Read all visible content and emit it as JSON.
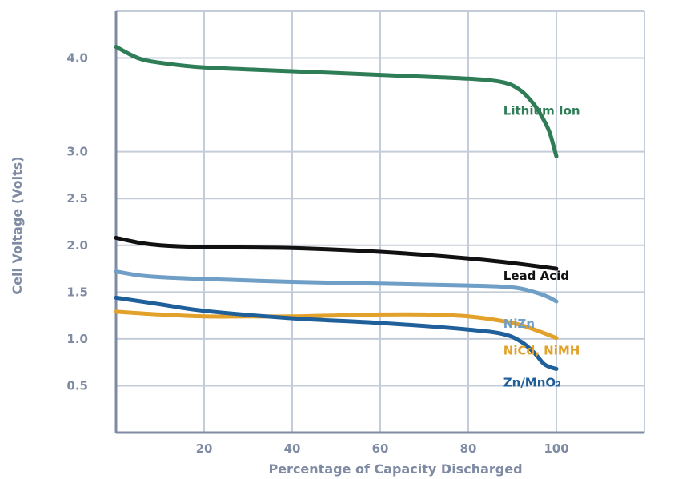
{
  "chart_data": {
    "type": "line",
    "xlabel": "Percentage of Capacity Discharged",
    "ylabel": "Cell Voltage (Volts)",
    "xlim": [
      0,
      120
    ],
    "ylim": [
      0,
      4.5
    ],
    "x_ticks": [
      {
        "value": 20,
        "label": "20"
      },
      {
        "value": 40,
        "label": "40"
      },
      {
        "value": 60,
        "label": "60"
      },
      {
        "value": 80,
        "label": "80"
      },
      {
        "value": 100,
        "label": "100"
      }
    ],
    "y_ticks": [
      {
        "value": 0.5,
        "label": "0.5"
      },
      {
        "value": 1.0,
        "label": "1.0"
      },
      {
        "value": 1.5,
        "label": "1.5"
      },
      {
        "value": 2.0,
        "label": "2.0"
      },
      {
        "value": 2.5,
        "label": "2.5"
      },
      {
        "value": 3.0,
        "label": "3.0"
      },
      {
        "value": 4.0,
        "label": "4.0"
      }
    ],
    "y_grid": [
      0.5,
      1.0,
      1.5,
      2.0,
      2.5,
      3.0,
      4.0
    ],
    "x_grid": [
      20,
      40,
      60,
      80,
      100
    ],
    "grid": true,
    "series": [
      {
        "name": "Lithium Ion",
        "color": "#2e7d57",
        "x": [
          0,
          5,
          10,
          20,
          40,
          60,
          80,
          88,
          92,
          95,
          97,
          98.5,
          100
        ],
        "y": [
          4.12,
          4.0,
          3.95,
          3.9,
          3.86,
          3.82,
          3.78,
          3.74,
          3.65,
          3.5,
          3.35,
          3.2,
          2.95
        ]
      },
      {
        "name": "Lead Acid",
        "color": "#111111",
        "x": [
          0,
          5,
          10,
          20,
          40,
          60,
          80,
          90,
          100
        ],
        "y": [
          2.08,
          2.03,
          2.0,
          1.98,
          1.97,
          1.93,
          1.86,
          1.81,
          1.75
        ]
      },
      {
        "name": "NiZn",
        "color": "#6f9ec6",
        "x": [
          0,
          5,
          10,
          20,
          40,
          60,
          80,
          90,
          95,
          98,
          100
        ],
        "y": [
          1.72,
          1.68,
          1.66,
          1.64,
          1.61,
          1.59,
          1.57,
          1.55,
          1.5,
          1.45,
          1.4
        ]
      },
      {
        "name": "NiCd, NiMH",
        "color": "#e2a12a",
        "x": [
          0,
          10,
          20,
          30,
          40,
          50,
          60,
          70,
          80,
          90,
          95,
          100
        ],
        "y": [
          1.29,
          1.26,
          1.24,
          1.24,
          1.24,
          1.25,
          1.26,
          1.26,
          1.24,
          1.17,
          1.1,
          1.01
        ]
      },
      {
        "name": "Zn/MnO₂",
        "color": "#1f5f9a",
        "x": [
          0,
          10,
          20,
          40,
          60,
          80,
          88,
          92,
          95,
          97,
          98.5,
          100
        ],
        "y": [
          1.44,
          1.37,
          1.3,
          1.22,
          1.17,
          1.1,
          1.05,
          0.97,
          0.85,
          0.74,
          0.7,
          0.68
        ]
      }
    ]
  }
}
